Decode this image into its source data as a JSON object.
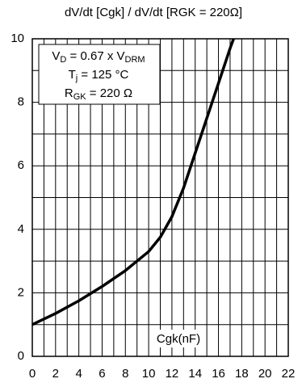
{
  "chart_data": {
    "type": "line",
    "title": "dV/dt [Cgk] / dV/dt [RGK = 220Ω]",
    "xlabel": "Cgk(nF)",
    "annotation": [
      [
        "V",
        "D",
        " = 0.67 x V",
        "DRM"
      ],
      [
        "T",
        "j",
        " = 125 °C"
      ],
      [
        "R",
        "GK",
        " = 220 Ω"
      ]
    ],
    "x": [
      0,
      2,
      4,
      6,
      8,
      10,
      11,
      12,
      13,
      14,
      15,
      16,
      17,
      17.3
    ],
    "series": [
      {
        "color": "#000000",
        "values": [
          1.0,
          1.35,
          1.75,
          2.2,
          2.7,
          3.3,
          3.75,
          4.4,
          5.3,
          6.4,
          7.5,
          8.6,
          9.7,
          10
        ]
      }
    ],
    "xlim": [
      0,
      22
    ],
    "ylim": [
      0,
      10
    ],
    "xticks": [
      0,
      2,
      4,
      6,
      8,
      10,
      12,
      14,
      16,
      18,
      20,
      22
    ],
    "yticks": [
      0,
      2,
      4,
      6,
      8,
      10
    ],
    "minor_xticks": [
      1,
      3,
      5,
      7,
      9,
      11,
      13,
      15,
      17,
      19,
      21
    ],
    "minor_yticks": [
      1,
      3,
      5,
      7,
      9
    ],
    "grid": true
  }
}
